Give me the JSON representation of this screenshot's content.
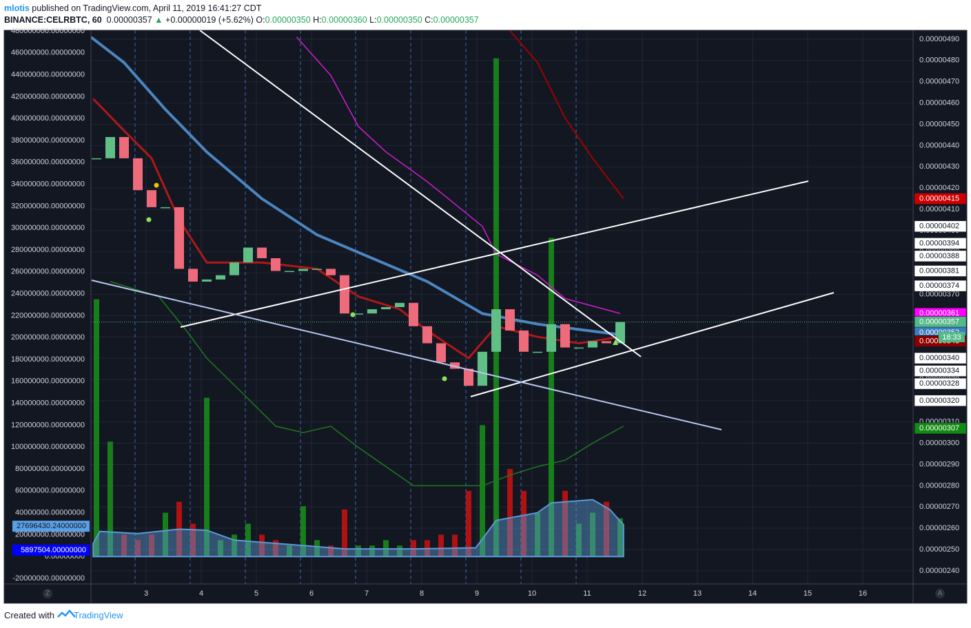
{
  "header": {
    "author": "mlotis",
    "published": "published on TradingView.com, April 11, 2019 16:41:27 CDT",
    "symbol": "BINANCE:CELRBTC, 60",
    "last": "0.00000357",
    "change": "+0.00000019 (+5.62%)",
    "ohlc": [
      {
        "label": "O:",
        "value": "0.00000350"
      },
      {
        "label": "H:",
        "value": "0.00000360"
      },
      {
        "label": "L:",
        "value": "0.00000350"
      },
      {
        "label": "C:",
        "value": "0.00000357"
      }
    ]
  },
  "footer": {
    "created": "Created with",
    "brand": "TradingView"
  },
  "corners": {
    "left": "Z",
    "right": "A"
  },
  "chart_data": {
    "type": "candlestick",
    "x": [
      2.1,
      2.35,
      2.6,
      2.85,
      3.1,
      3.35,
      3.6,
      3.85,
      4.1,
      4.35,
      4.6,
      4.85,
      5.1,
      5.35,
      5.6,
      5.85,
      6.1,
      6.35,
      6.6,
      6.85,
      7.1,
      7.35,
      7.6,
      7.85,
      8.1,
      8.35,
      8.6,
      8.85,
      9.1,
      9.35,
      9.6,
      9.85,
      10.1,
      10.35,
      10.6,
      10.85,
      11.1,
      11.35,
      11.6
    ],
    "xlim": [
      2.0,
      16.9125
    ],
    "xticks": [
      3,
      4,
      5,
      6,
      7,
      8,
      9,
      10,
      11,
      12,
      13,
      14,
      15,
      16
    ],
    "ylim": [
      -25000000,
      480600000
    ],
    "yticks": [
      {
        "value": 480000000,
        "label": "480000000.00000000"
      },
      {
        "value": 460000000,
        "label": "460000000.00000000"
      },
      {
        "value": 440000000,
        "label": "440000000.00000000"
      },
      {
        "value": 420000000,
        "label": "420000000.00000000"
      },
      {
        "value": 400000000,
        "label": "400000000.00000000"
      },
      {
        "value": 380000000,
        "label": "380000000.00000000"
      },
      {
        "value": 360000000,
        "label": "360000000.00000000"
      },
      {
        "value": 340000000,
        "label": "340000000.00000000"
      },
      {
        "value": 320000000,
        "label": "320000000.00000000"
      },
      {
        "value": 300000000,
        "label": "300000000.00000000"
      },
      {
        "value": 280000000,
        "label": "280000000.00000000"
      },
      {
        "value": 260000000,
        "label": "260000000.00000000"
      },
      {
        "value": 240000000,
        "label": "240000000.00000000"
      },
      {
        "value": 220000000,
        "label": "220000000.00000000"
      },
      {
        "value": 200000000,
        "label": "200000000.00000000"
      },
      {
        "value": 180000000,
        "label": "180000000.00000000"
      },
      {
        "value": 160000000,
        "label": "160000000.00000000"
      },
      {
        "value": 140000000,
        "label": "140000000.00000000"
      },
      {
        "value": 120000000,
        "label": "120000000.00000000"
      },
      {
        "value": 100000000,
        "label": "100000000.00000000"
      },
      {
        "value": 80000000,
        "label": "80000000.00000000"
      },
      {
        "value": 60000000,
        "label": "60000000.00000000"
      },
      {
        "value": 40000000,
        "label": "40000000.00000000"
      },
      {
        "value": 20000000,
        "label": "20000000.00000000"
      },
      {
        "value": 0,
        "label": "0.00000000"
      },
      {
        "value": -20000000,
        "label": "-20000000.00000000"
      }
    ],
    "y2lim": [
      2.338e-06,
      4.942e-06
    ],
    "y2ticks": [
      {
        "value": 4.9e-06,
        "label": "0.00000490"
      },
      {
        "value": 4.8e-06,
        "label": "0.00000480"
      },
      {
        "value": 4.7e-06,
        "label": "0.00000470"
      },
      {
        "value": 4.6e-06,
        "label": "0.00000460"
      },
      {
        "value": 4.5e-06,
        "label": "0.00000450"
      },
      {
        "value": 4.4e-06,
        "label": "0.00000440"
      },
      {
        "value": 4.3e-06,
        "label": "0.00000430"
      },
      {
        "value": 4.2e-06,
        "label": "0.00000420"
      },
      {
        "value": 4.1e-06,
        "label": "0.00000410"
      },
      {
        "value": 4e-06,
        "label": "0.00000400"
      },
      {
        "value": 3.9e-06,
        "label": "0.00000390"
      },
      {
        "value": 3.8e-06,
        "label": "0.00000380"
      },
      {
        "value": 3.7e-06,
        "label": "0.00000370"
      },
      {
        "value": 3.6e-06,
        "label": "0.00000360"
      },
      {
        "value": 3.5e-06,
        "label": "0.00000350"
      },
      {
        "value": 3.4e-06,
        "label": "0.00000340"
      },
      {
        "value": 3.3e-06,
        "label": "0.00000330"
      },
      {
        "value": 3.2e-06,
        "label": "0.00000320"
      },
      {
        "value": 3.1e-06,
        "label": "0.00000310"
      },
      {
        "value": 3e-06,
        "label": "0.00000300"
      },
      {
        "value": 2.9e-06,
        "label": "0.00000290"
      },
      {
        "value": 2.8e-06,
        "label": "0.00000280"
      },
      {
        "value": 2.7e-06,
        "label": "0.00000270"
      },
      {
        "value": 2.6e-06,
        "label": "0.00000260"
      },
      {
        "value": 2.5e-06,
        "label": "0.00000250"
      },
      {
        "value": 2.4e-06,
        "label": "0.00000240"
      }
    ],
    "grid": true,
    "series": [
      {
        "type": "candlestick",
        "axis": "y2",
        "up_color": "#5fbf85",
        "down_color": "#ee6b7b",
        "values": [
          4.34e-06,
          4.44e-06,
          4.34e-06,
          4.19e-06,
          4.11e-06,
          4.11e-06,
          3.82e-06,
          3.76e-06,
          3.77e-06,
          3.79e-06,
          3.85e-06,
          3.92e-06,
          3.87e-06,
          3.81e-06,
          3.81e-06,
          3.82e-06,
          3.82e-06,
          3.79e-06,
          3.61e-06,
          3.61e-06,
          3.63e-06,
          3.64e-06,
          3.66e-06,
          3.55e-06,
          3.47e-06,
          3.38e-06,
          3.35e-06,
          3.27e-06,
          3.43e-06,
          3.63e-06,
          3.53e-06,
          3.43e-06,
          3.43e-06,
          3.56e-06,
          3.45e-06,
          3.45e-06,
          3.48e-06,
          3.47e-06,
          3.57e-06
        ]
      },
      {
        "type": "bar",
        "axis": "y",
        "up_color": "#1a8f1a",
        "down_color": "#cc1010",
        "values": [
          235000000,
          105000000,
          20000000,
          15000000,
          20000000,
          40000000,
          50000000,
          30000000,
          145000000,
          15000000,
          20000000,
          30000000,
          20000000,
          15000000,
          10000000,
          46000000,
          15000000,
          10000000,
          43000000,
          10000000,
          10000000,
          15000000,
          10000000,
          15000000,
          15000000,
          20000000,
          20000000,
          60000000,
          120000000,
          455000000,
          80000000,
          60000000,
          40000000,
          291000000,
          60000000,
          30000000,
          40000000,
          50000000,
          35000000
        ]
      },
      {
        "type": "area",
        "axis": "y",
        "color": "#5b9bd5",
        "x": [
          2.04,
          2.16,
          2.85,
          3.6,
          4.1,
          4.6,
          5.85,
          6.6,
          7.85,
          8.98,
          9.35,
          10.1,
          10.35,
          11.1,
          11.41,
          11.66
        ],
        "values": [
          12000000,
          23000000,
          21000000,
          25000000,
          24000000,
          15000000,
          10000000,
          7000000,
          7000000,
          8000000,
          33000000,
          40000000,
          49000000,
          52000000,
          43000000,
          29000000
        ]
      },
      {
        "type": "line",
        "axis": "y2",
        "color": "#b01818",
        "width": 3,
        "x": [
          2.04,
          2.6,
          3.1,
          3.6,
          4.1,
          5.1,
          6.1,
          6.85,
          7.6,
          8.1,
          8.85,
          9.35,
          10.1,
          10.85,
          11.6
        ],
        "values": [
          4.62e-06,
          4.47e-06,
          4.34e-06,
          4.05e-06,
          3.85e-06,
          3.85e-06,
          3.82e-06,
          3.69e-06,
          3.63e-06,
          3.53e-06,
          3.4e-06,
          3.55e-06,
          3.5e-06,
          3.47e-06,
          3.5e-06
        ]
      },
      {
        "type": "line",
        "axis": "y2",
        "color": "#4a86c0",
        "width": 4,
        "x": [
          2.0,
          2.6,
          3.35,
          4.1,
          5.1,
          6.1,
          7.1,
          8.1,
          9.1,
          10.1,
          11.6
        ],
        "values": [
          4.91e-06,
          4.79e-06,
          4.57e-06,
          4.37e-06,
          4.15e-06,
          3.98e-06,
          3.87e-06,
          3.76e-06,
          3.61e-06,
          3.56e-06,
          3.51e-06
        ]
      },
      {
        "type": "line",
        "axis": "y2",
        "color": "#d21ed2",
        "width": 1.5,
        "x": [
          5.73,
          6.35,
          6.85,
          7.35,
          8.1,
          9.1,
          9.35,
          10.1,
          10.6,
          11.6
        ],
        "values": [
          4.91e-06,
          4.73e-06,
          4.49e-06,
          4.37e-06,
          4.23e-06,
          4.02e-06,
          3.89e-06,
          3.79e-06,
          3.68e-06,
          3.61e-06
        ]
      },
      {
        "type": "line",
        "axis": "y2",
        "color": "#a00000",
        "width": 2,
        "x": [
          9.6,
          10.1,
          10.6,
          11.1,
          11.66
        ],
        "values": [
          4.94e-06,
          4.79e-06,
          4.53e-06,
          4.34e-06,
          4.15e-06
        ]
      },
      {
        "type": "line",
        "axis": "y2",
        "color": "#1e7a1e",
        "width": 1.5,
        "x": [
          2.35,
          3.23,
          3.73,
          4.1,
          4.73,
          5.35,
          5.85,
          6.35,
          6.85,
          7.35,
          7.85,
          8.6,
          9.1,
          9.6,
          10.1,
          10.6,
          11.1,
          11.66
        ],
        "values": [
          3.76e-06,
          3.69e-06,
          3.53e-06,
          3.4e-06,
          3.24e-06,
          3.08e-06,
          3.05e-06,
          3.08e-06,
          2.98e-06,
          2.89e-06,
          2.8e-06,
          2.8e-06,
          2.8e-06,
          2.85e-06,
          2.89e-06,
          2.92e-06,
          3e-06,
          3.08e-06
        ]
      }
    ],
    "price_labels": [
      {
        "value": 4.15e-06,
        "label": "0.00000415",
        "color": "#cc0000",
        "text_color": "#ffffff"
      },
      {
        "value": 4.02e-06,
        "label": "0.00000402",
        "color": "#ffffff",
        "text_color": "#131722"
      },
      {
        "value": 3.94e-06,
        "label": "0.00000394",
        "color": "#ffffff",
        "text_color": "#131722"
      },
      {
        "value": 3.88e-06,
        "label": "0.00000388",
        "color": "#ffffff",
        "text_color": "#131722"
      },
      {
        "value": 3.81e-06,
        "label": "0.00000381",
        "color": "#ffffff",
        "text_color": "#131722"
      },
      {
        "value": 3.74e-06,
        "label": "0.00000374",
        "color": "#ffffff",
        "text_color": "#131722"
      },
      {
        "value": 3.61e-06,
        "label": "0.00000361",
        "color": "#ff00ff",
        "text_color": "#ffffff"
      },
      {
        "value": 3.57e-06,
        "label": "0.00000357",
        "color": "#53b987",
        "text_color": "#ffffff"
      },
      {
        "value": 3.5e-06,
        "label": "0.00000350",
        "color": "#ffffff",
        "text_color": "#131722"
      },
      {
        "value": 3.52e-06,
        "label": "0.00000352",
        "color": "#3a7ebf",
        "text_color": "#ffffff"
      },
      {
        "value": 3.48e-06,
        "label": "0.00000348",
        "color": "#ffffff",
        "text_color": "#131722"
      },
      {
        "value": 3.48e-06,
        "label": "0.00000348",
        "color": "#8b0000",
        "text_color": "#ffffff"
      },
      {
        "value": 3.4e-06,
        "label": "0.00000340",
        "color": "#ffffff",
        "text_color": "#131722"
      },
      {
        "value": 3.34e-06,
        "label": "0.00000334",
        "color": "#ffffff",
        "text_color": "#131722"
      },
      {
        "value": 3.28e-06,
        "label": "0.00000328",
        "color": "#ffffff",
        "text_color": "#131722"
      },
      {
        "value": 3.2e-06,
        "label": "0.00000320",
        "color": "#ffffff",
        "text_color": "#131722"
      },
      {
        "value": 3.07e-06,
        "label": "0.00000307",
        "color": "#138a13",
        "text_color": "#ffffff"
      }
    ],
    "countdown": "18:33",
    "volume_labels": [
      {
        "value": 27696430.24,
        "label": "27696430.24000000",
        "color": "#5aa0e6",
        "text_color": "#131722"
      },
      {
        "value": 5897504,
        "label": "5897504.00000000",
        "color": "#0000ff",
        "text_color": "#ffffff"
      }
    ]
  }
}
